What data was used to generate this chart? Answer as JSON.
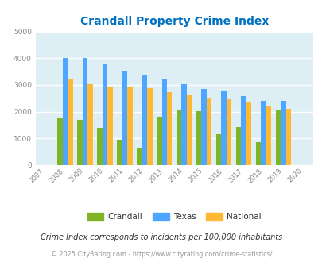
{
  "title": "Crandall Property Crime Index",
  "years": [
    2007,
    2008,
    2009,
    2010,
    2011,
    2012,
    2013,
    2014,
    2015,
    2016,
    2017,
    2018,
    2019,
    2020
  ],
  "crandall": [
    null,
    1750,
    1680,
    1400,
    950,
    620,
    1820,
    2080,
    2010,
    1170,
    1430,
    850,
    2040,
    null
  ],
  "texas": [
    null,
    4000,
    4020,
    3800,
    3490,
    3370,
    3250,
    3040,
    2840,
    2780,
    2590,
    2400,
    2400,
    null
  ],
  "national": [
    null,
    3210,
    3040,
    2940,
    2910,
    2870,
    2730,
    2600,
    2490,
    2460,
    2360,
    2200,
    2120,
    null
  ],
  "crandall_color": "#7db526",
  "texas_color": "#4da6ff",
  "national_color": "#ffb833",
  "bg_color": "#deeef5",
  "title_color": "#0070c0",
  "ylim": [
    0,
    5000
  ],
  "yticks": [
    0,
    1000,
    2000,
    3000,
    4000,
    5000
  ],
  "subtitle": "Crime Index corresponds to incidents per 100,000 inhabitants",
  "footer": "© 2025 CityRating.com - https://www.cityrating.com/crime-statistics/",
  "subtitle_color": "#333333",
  "footer_color": "#999999",
  "plot_years": [
    2008,
    2009,
    2010,
    2011,
    2012,
    2013,
    2014,
    2015,
    2016,
    2017,
    2018,
    2019
  ],
  "all_tick_years": [
    2007,
    2008,
    2009,
    2010,
    2011,
    2012,
    2013,
    2014,
    2015,
    2016,
    2017,
    2018,
    2019,
    2020
  ]
}
